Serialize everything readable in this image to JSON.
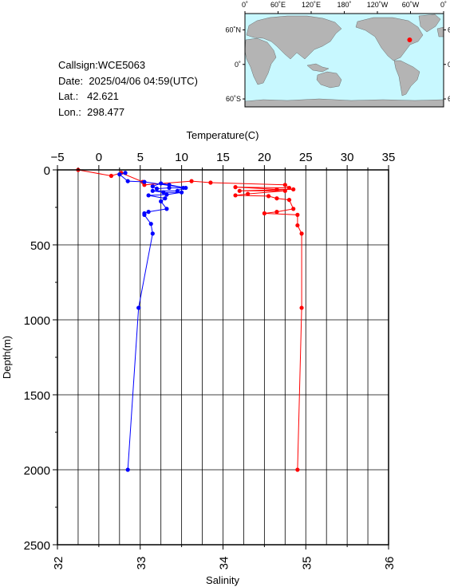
{
  "station": {
    "callsign_label": "Callsign:",
    "callsign": "WCE5063",
    "date_label": "Date:",
    "date": "2025/04/06 04:59(UTC)",
    "lat_label": "Lat.:",
    "lat": "42.621",
    "lon_label": "Lon.:",
    "lon": "298.477"
  },
  "map": {
    "lon_labels": [
      "0˚",
      "60˚E",
      "120˚E",
      "180˚",
      "120˚W",
      "60˚W",
      "0˚"
    ],
    "lat_labels": [
      "60˚N",
      "0˚",
      "60˚S"
    ],
    "ocean_color": "#c8f8ff",
    "land_color": "#b4b4b4",
    "marker_color": "#ff0000",
    "marker": {
      "lon": 298.477,
      "lat": 42.621
    }
  },
  "chart_data": {
    "type": "line",
    "ylabel": "Depth(m)",
    "ylim": [
      0,
      2500
    ],
    "y_inverted": true,
    "yticks": [
      "0",
      "500",
      "1000",
      "1500",
      "2000",
      "2500"
    ],
    "grid": true,
    "top_axis": {
      "label": "Temperature(C)",
      "range": [
        -5,
        35
      ],
      "ticks": [
        "−5",
        "0",
        "5",
        "10",
        "15",
        "20",
        "25",
        "30",
        "35"
      ]
    },
    "bottom_axis": {
      "label": "Salinity",
      "range": [
        32,
        36
      ],
      "ticks": [
        "32",
        "33",
        "34",
        "35",
        "36"
      ]
    },
    "series": [
      {
        "color": "#ff0000",
        "axis": "top",
        "points": [
          [
            -2.5,
            0
          ],
          [
            1.5,
            40
          ],
          [
            2.7,
            20
          ],
          [
            5.3,
            80
          ],
          [
            5.5,
            100
          ],
          [
            11.2,
            75
          ],
          [
            13.5,
            85
          ],
          [
            22.5,
            100
          ],
          [
            23,
            120
          ],
          [
            16.5,
            115
          ],
          [
            21.5,
            130
          ],
          [
            23.5,
            130
          ],
          [
            17,
            140
          ],
          [
            22.5,
            140
          ],
          [
            18,
            160
          ],
          [
            16.5,
            170
          ],
          [
            20.5,
            175
          ],
          [
            21.5,
            190
          ],
          [
            23,
            200
          ],
          [
            23.5,
            260
          ],
          [
            21.5,
            280
          ],
          [
            20,
            290
          ],
          [
            24,
            300
          ],
          [
            24,
            370
          ],
          [
            24.5,
            425
          ],
          [
            24.5,
            920
          ],
          [
            24,
            2000
          ]
        ]
      },
      {
        "color": "#0000ff",
        "axis": "top",
        "points": [
          [
            3.2,
            20
          ],
          [
            2.5,
            30
          ],
          [
            3.5,
            75
          ],
          [
            5.5,
            80
          ],
          [
            10.5,
            120
          ],
          [
            8.5,
            100
          ],
          [
            7.5,
            90
          ],
          [
            6.5,
            110
          ],
          [
            7,
            125
          ],
          [
            8.5,
            120
          ],
          [
            10.2,
            120
          ],
          [
            9.5,
            140
          ],
          [
            6.5,
            140
          ],
          [
            7.8,
            150
          ],
          [
            10,
            150
          ],
          [
            8.2,
            165
          ],
          [
            6,
            170
          ],
          [
            8,
            190
          ],
          [
            7.5,
            210
          ],
          [
            8.2,
            260
          ],
          [
            6,
            280
          ],
          [
            5.5,
            290
          ],
          [
            5.5,
            300
          ],
          [
            6.3,
            360
          ],
          [
            6.5,
            425
          ],
          [
            4.8,
            920
          ],
          [
            3.5,
            2000
          ]
        ]
      }
    ]
  }
}
